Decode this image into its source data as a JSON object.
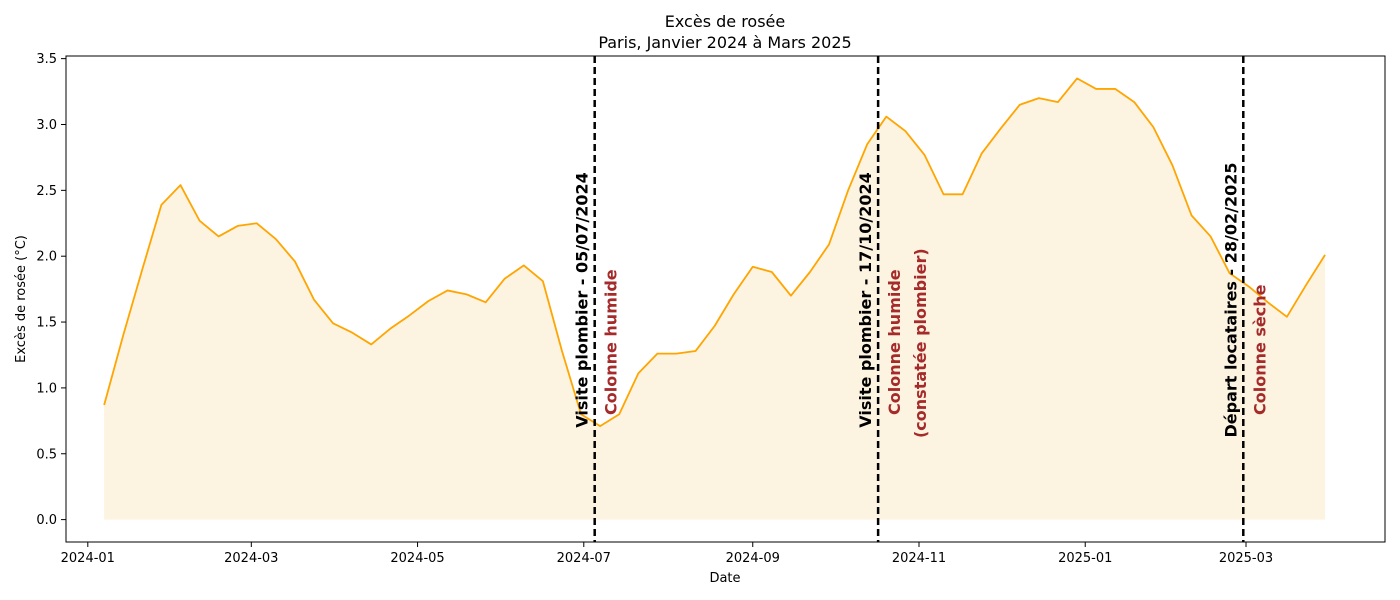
{
  "chart_data": {
    "type": "area",
    "title": "Excès de rosée",
    "subtitle": "Paris, Janvier 2024 à Mars 2025",
    "xlabel": "Date",
    "ylabel": "Excès de rosée (°C)",
    "xlim": [
      "2023-12-24",
      "2025-04-21"
    ],
    "ylim": [
      -0.17,
      3.52
    ],
    "grid": false,
    "colors": {
      "line": "#ffa500",
      "fill": "#fdf3e1",
      "vline": "#000000",
      "annotation_red": "#a52a2a"
    },
    "x_ticks": [
      "2024-01",
      "2024-03",
      "2024-05",
      "2024-07",
      "2024-09",
      "2024-11",
      "2025-01",
      "2025-03"
    ],
    "x_tick_dates": [
      "2024-01-01",
      "2024-03-01",
      "2024-05-01",
      "2024-07-01",
      "2024-09-01",
      "2024-11-01",
      "2025-01-01",
      "2025-03-01"
    ],
    "y_ticks": [
      "0.0",
      "0.5",
      "1.0",
      "1.5",
      "2.0",
      "2.5",
      "3.0",
      "3.5"
    ],
    "y_tick_values": [
      0,
      0.5,
      1.0,
      1.5,
      2.0,
      2.5,
      3.0,
      3.5
    ],
    "series": [
      {
        "x": [
          "2024-01-07",
          "2024-01-14",
          "2024-01-21",
          "2024-01-28",
          "2024-02-04",
          "2024-02-11",
          "2024-02-18",
          "2024-02-25",
          "2024-03-03",
          "2024-03-10",
          "2024-03-17",
          "2024-03-24",
          "2024-03-31",
          "2024-04-07",
          "2024-04-14",
          "2024-04-21",
          "2024-04-28",
          "2024-05-05",
          "2024-05-12",
          "2024-05-19",
          "2024-05-26",
          "2024-06-02",
          "2024-06-09",
          "2024-06-16",
          "2024-06-23",
          "2024-06-30",
          "2024-07-07",
          "2024-07-14",
          "2024-07-21",
          "2024-07-28",
          "2024-08-04",
          "2024-08-11",
          "2024-08-18",
          "2024-08-25",
          "2024-09-01",
          "2024-09-08",
          "2024-09-15",
          "2024-09-22",
          "2024-09-29",
          "2024-10-06",
          "2024-10-13",
          "2024-10-20",
          "2024-10-27",
          "2024-11-03",
          "2024-11-10",
          "2024-11-17",
          "2024-11-24",
          "2024-12-01",
          "2024-12-08",
          "2024-12-15",
          "2024-12-22",
          "2024-12-29",
          "2025-01-05",
          "2025-01-12",
          "2025-01-19",
          "2025-01-26",
          "2025-02-02",
          "2025-02-09",
          "2025-02-16",
          "2025-02-23",
          "2025-03-02",
          "2025-03-09",
          "2025-03-16",
          "2025-03-23",
          "2025-03-30"
        ],
        "values": [
          0.87,
          1.4,
          1.9,
          2.39,
          2.54,
          2.27,
          2.15,
          2.23,
          2.25,
          2.13,
          1.96,
          1.67,
          1.49,
          1.42,
          1.33,
          1.45,
          1.55,
          1.66,
          1.74,
          1.71,
          1.65,
          1.83,
          1.93,
          1.81,
          1.28,
          0.8,
          0.71,
          0.8,
          1.11,
          1.26,
          1.26,
          1.28,
          1.47,
          1.71,
          1.92,
          1.88,
          1.7,
          1.88,
          2.09,
          2.5,
          2.85,
          3.06,
          2.95,
          2.77,
          2.47,
          2.47,
          2.78,
          2.97,
          3.15,
          3.2,
          3.17,
          3.35,
          3.27,
          3.27,
          3.17,
          2.98,
          2.69,
          2.31,
          2.15,
          1.87,
          1.77,
          1.65,
          1.54,
          1.78,
          2.01
        ]
      }
    ],
    "annotations": [
      {
        "date": "2024-07-05",
        "label": "Visite plombier   - 05/07/2024",
        "note_lines": [
          "Colonne humide"
        ]
      },
      {
        "date": "2024-10-17",
        "label": "Visite plombier   - 17/10/2024",
        "note_lines": [
          "Colonne humide",
          "(constatée plombier)"
        ]
      },
      {
        "date": "2025-02-28",
        "label": "Départ locataires - 28/02/2025",
        "note_lines": [
          "Colonne sèche"
        ]
      }
    ]
  }
}
